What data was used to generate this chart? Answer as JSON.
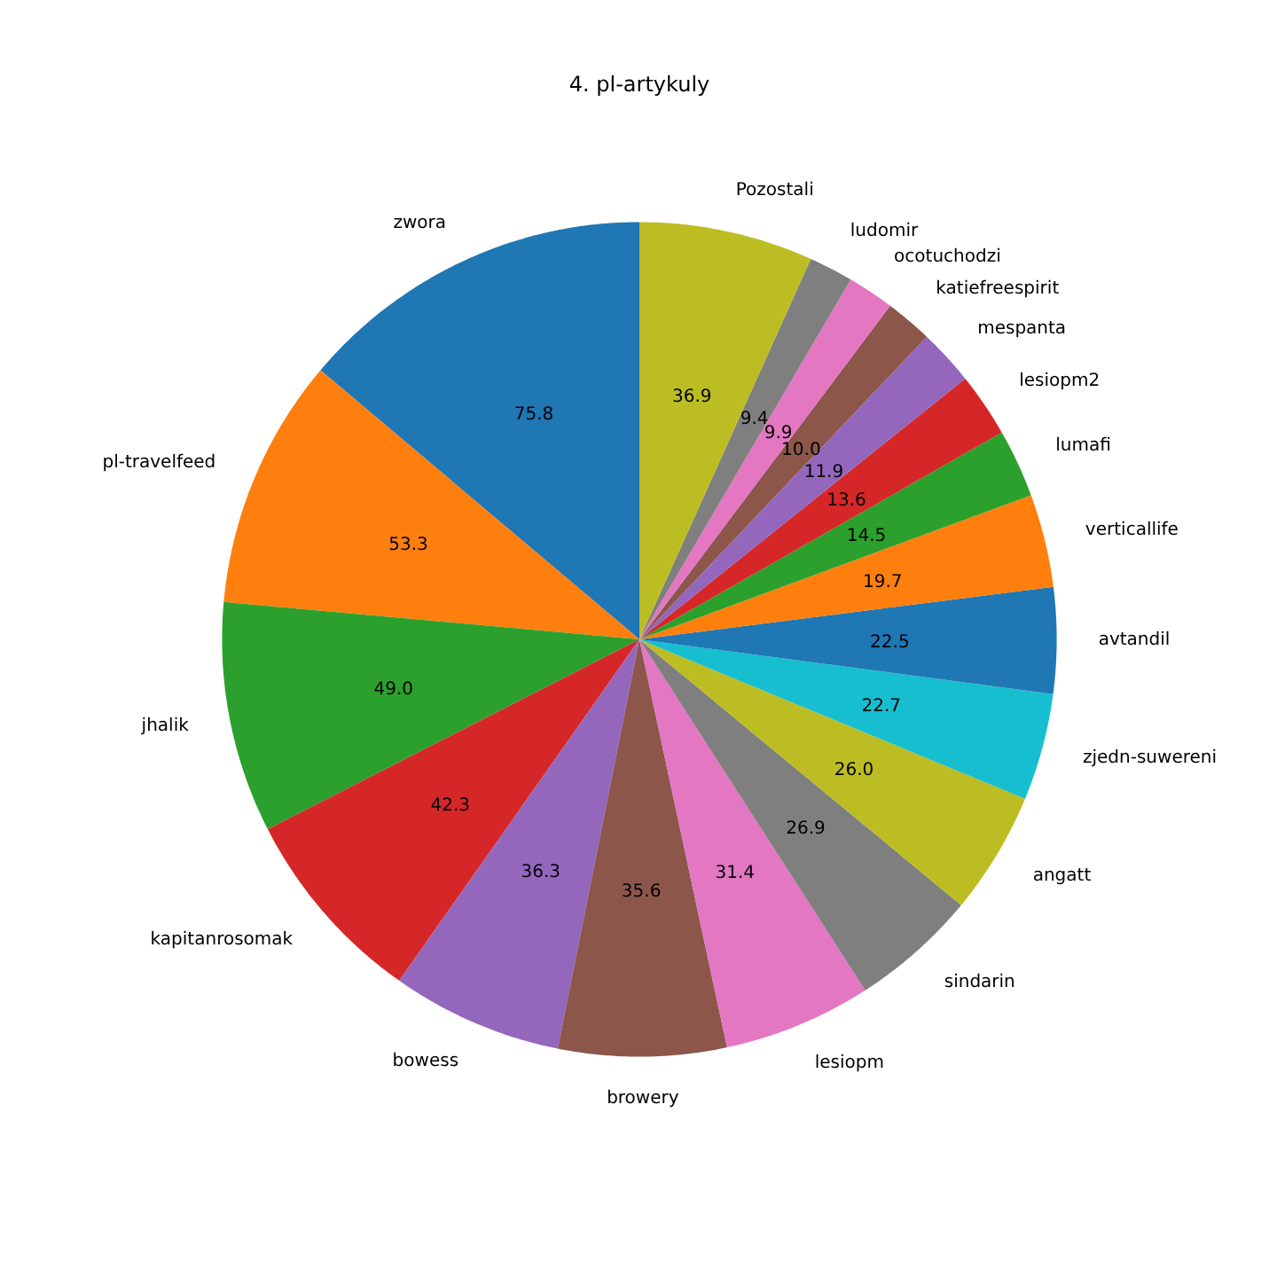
{
  "chart_data": {
    "type": "pie",
    "title": "4. pl-artykuly",
    "categories": [
      "zwora",
      "pl-travelfeed",
      "jhalik",
      "kapitanrosomak",
      "bowess",
      "browery",
      "lesiopm",
      "sindarin",
      "angatt",
      "zjedn-suwereni",
      "avtandil",
      "verticallife",
      "lumafi",
      "lesiopm2",
      "mespanta",
      "katiefreespirit",
      "ocotuchodzi",
      "ludomir",
      "Pozostali"
    ],
    "values": [
      75.8,
      53.3,
      49.0,
      42.3,
      36.3,
      35.6,
      31.4,
      26.9,
      26.0,
      22.7,
      22.5,
      19.7,
      14.5,
      13.6,
      11.9,
      10.0,
      9.9,
      9.4,
      36.9
    ],
    "colors": [
      "#1f77b4",
      "#ff7f0e",
      "#2ca02c",
      "#d62728",
      "#9467bd",
      "#8c564b",
      "#e377c2",
      "#7f7f7f",
      "#bcbd22",
      "#17becf",
      "#1f77b4",
      "#ff7f0e",
      "#2ca02c",
      "#d62728",
      "#9467bd",
      "#8c564b",
      "#e377c2",
      "#7f7f7f",
      "#bcbd22"
    ],
    "value_labels": [
      "75.8",
      "53.3",
      "49.0",
      "42.3",
      "36.3",
      "35.6",
      "31.4",
      "26.9",
      "26.0",
      "22.7",
      "22.5",
      "19.7",
      "14.5",
      "13.6",
      "11.9",
      "10.0",
      "9.9",
      "9.4",
      "36.9"
    ]
  }
}
